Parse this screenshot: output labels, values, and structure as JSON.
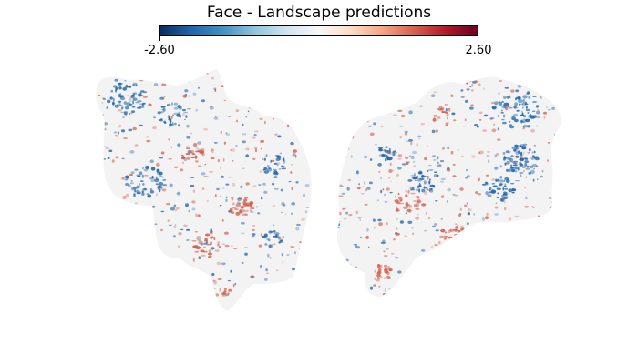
{
  "title": "Face - Landscape predictions",
  "colorbar": {
    "min_label": "-2.60",
    "max_label": "2.60",
    "colors": [
      "#053061",
      "#2166ac",
      "#4393c3",
      "#92c5de",
      "#d1e5f0",
      "#f7f7f7",
      "#fddbc7",
      "#f4a582",
      "#d6604d",
      "#b2182b",
      "#67001f"
    ]
  },
  "map": {
    "background_color": "#f3f3f3",
    "negative_color": "#2166ac",
    "positive_color": "#d6604d"
  }
}
